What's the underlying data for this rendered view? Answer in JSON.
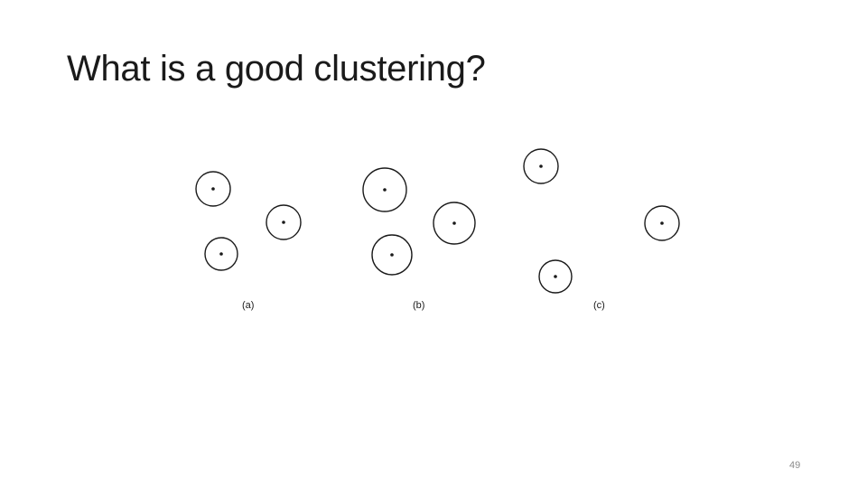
{
  "slide": {
    "title": "What is a good clustering?",
    "page_number": "49"
  },
  "figure": {
    "panels": [
      {
        "label": "(a)",
        "clusters": 3
      },
      {
        "label": "(b)",
        "clusters": 3
      },
      {
        "label": "(c)",
        "clusters": 3
      }
    ]
  }
}
